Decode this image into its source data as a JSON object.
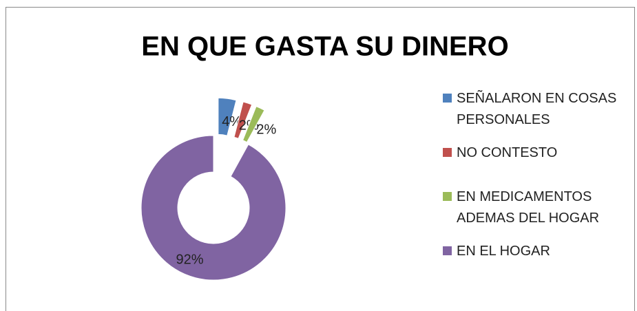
{
  "chart_data": {
    "type": "donut",
    "title": "EN QUE GASTA SU DINERO",
    "categories": [
      "SEÑALARON EN COSAS PERSONALES",
      "NO CONTESTO",
      "EN MEDICAMENTOS ADEMAS DEL HOGAR",
      "EN EL HOGAR"
    ],
    "values": [
      4,
      2,
      2,
      92
    ],
    "value_labels": [
      "4%",
      "2%",
      "2%",
      "92%"
    ],
    "colors": [
      "#4f81bd",
      "#c0504d",
      "#9bbb59",
      "#8064a2"
    ],
    "legend": "right"
  }
}
